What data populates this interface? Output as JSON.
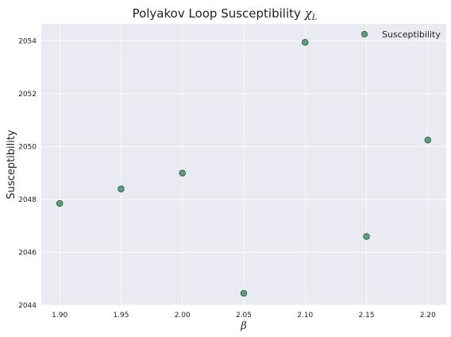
{
  "chart_data": {
    "type": "scatter",
    "title": "Polyakov Loop Susceptibility",
    "title_symbol": "χ",
    "title_subscript": "L",
    "xlabel": "β",
    "ylabel": "Susceptibility",
    "xlim": [
      1.885,
      2.215
    ],
    "ylim": [
      2044,
      2054.65
    ],
    "x_ticks": [
      1.9,
      1.95,
      2.0,
      2.05,
      2.1,
      2.15,
      2.2
    ],
    "x_tick_labels": [
      "1.90",
      "1.95",
      "2.00",
      "2.05",
      "2.10",
      "2.15",
      "2.20"
    ],
    "y_ticks": [
      2044,
      2046,
      2048,
      2050,
      2052,
      2054
    ],
    "y_tick_labels": [
      "2044",
      "2046",
      "2048",
      "2050",
      "2052",
      "2054"
    ],
    "grid": true,
    "legend_position": "top-right",
    "series": [
      {
        "name": "Susceptibility",
        "color": "#5c9e78",
        "edge_color": "#2f4f3a",
        "x": [
          1.9,
          1.95,
          2.0,
          2.05,
          2.1,
          2.15,
          2.2
        ],
        "y": [
          2047.85,
          2048.4,
          2049.0,
          2044.45,
          2053.95,
          2046.6,
          2050.25
        ]
      }
    ],
    "background": "#eaeaf2",
    "grid_color": "#ffffff"
  }
}
